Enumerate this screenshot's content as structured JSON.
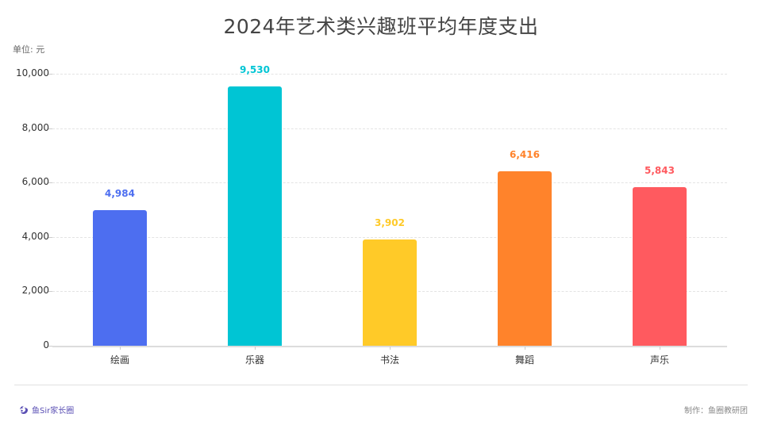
{
  "title": "2024年艺术类兴趣班平均年度支出",
  "unit_label": "单位: 元",
  "footer": {
    "brand": "鱼Sir家长圈",
    "brand_icon": "fish-logo-icon",
    "credit": "制作：鱼圈教研团"
  },
  "chart_data": {
    "type": "bar",
    "title": "2024年艺术类兴趣班平均年度支出",
    "xlabel": "",
    "ylabel": "单位: 元",
    "categories": [
      "绘画",
      "乐器",
      "书法",
      "舞蹈",
      "声乐"
    ],
    "values": [
      4984,
      9530,
      3902,
      6416,
      5843
    ],
    "value_labels": [
      "4,984",
      "9,530",
      "3,902",
      "6,416",
      "5,843"
    ],
    "colors": [
      "#4D6EF0",
      "#00C5D4",
      "#FFCA28",
      "#FF832B",
      "#FF5A5F"
    ],
    "ylim": [
      0,
      10000
    ],
    "yticks": [
      0,
      2000,
      4000,
      6000,
      8000,
      10000
    ],
    "ytick_labels": [
      "0",
      "2,000",
      "4,000",
      "6,000",
      "8,000",
      "10,000"
    ],
    "grid": true,
    "grid_style": "dashed",
    "legend": "none"
  }
}
